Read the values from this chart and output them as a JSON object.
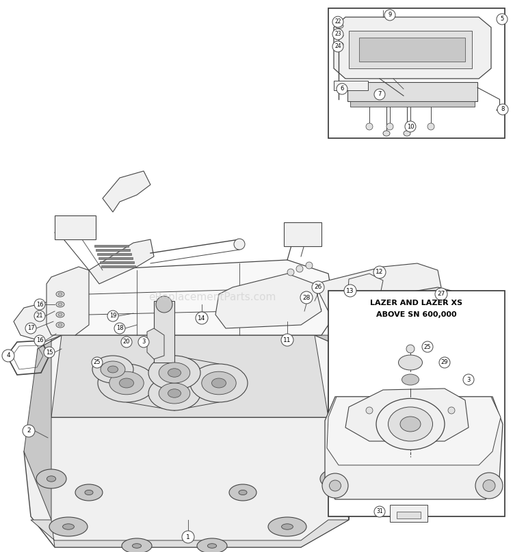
{
  "bg_color": "#ffffff",
  "line_color": "#444444",
  "fill_light": "#f0f0f0",
  "fill_mid": "#e0e0e0",
  "fill_dark": "#c8c8c8",
  "watermark": "eReplacementParts.com",
  "watermark_color": "#d0d0d0",
  "inset1_title_line1": "LAZER AND LAZER XS",
  "inset1_title_line2": "ABOVE SN 600,000",
  "figsize": [
    7.5,
    8.07
  ],
  "dpi": 100
}
